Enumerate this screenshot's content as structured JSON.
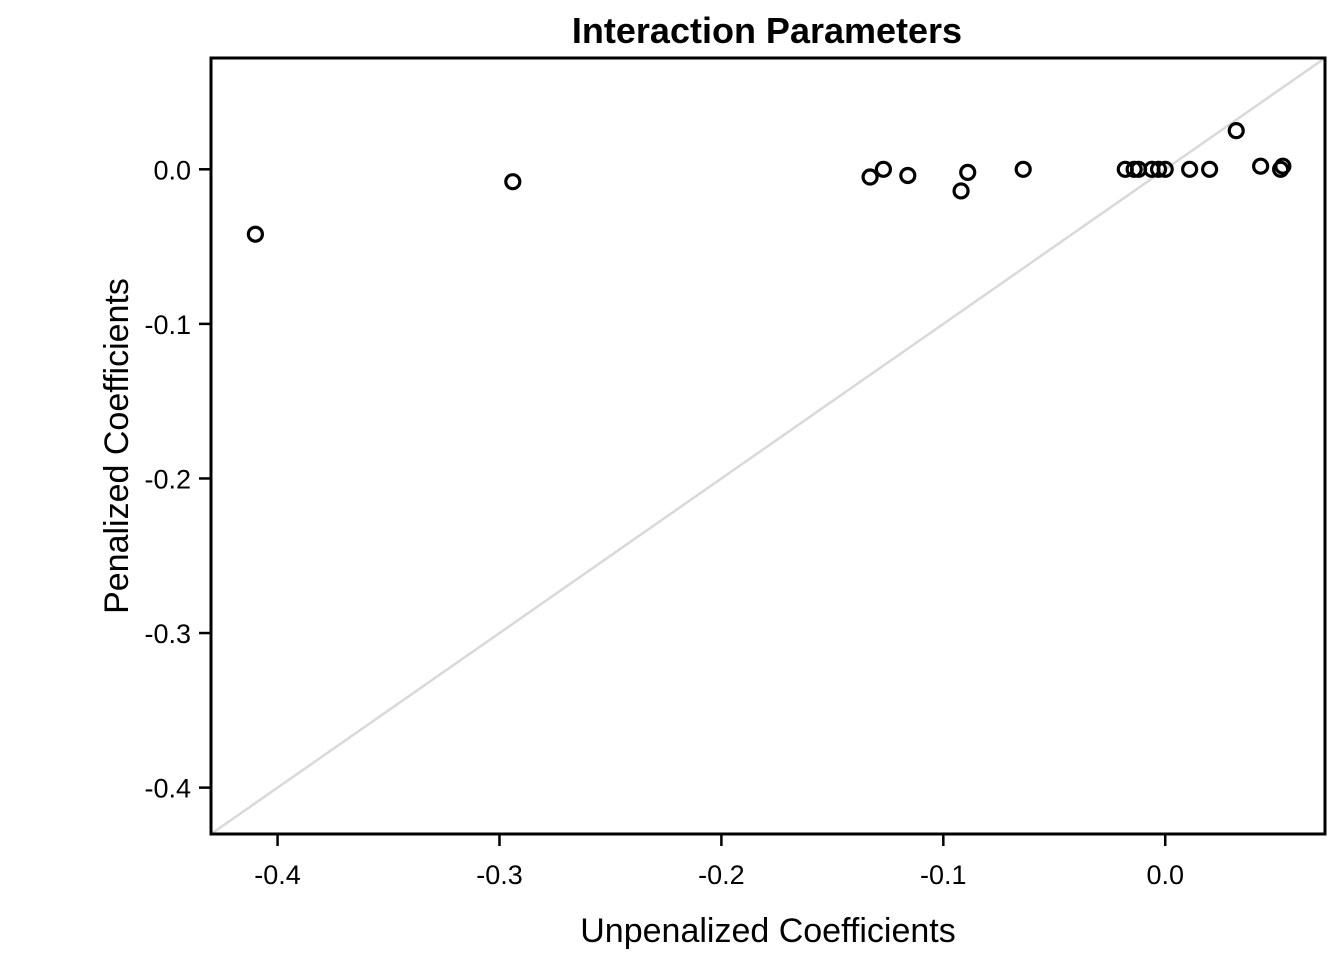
{
  "chart_data": {
    "type": "scatter",
    "title": "Interaction Parameters",
    "xlabel": "Unpenalized Coefficients",
    "ylabel": "Penalized Coefficients",
    "xlim": [
      -0.43,
      0.072
    ],
    "ylim": [
      -0.43,
      0.072
    ],
    "xticks": [
      -0.4,
      -0.3,
      -0.2,
      -0.1,
      0.0
    ],
    "xtick_labels": [
      "-0.4",
      "-0.3",
      "-0.2",
      "-0.1",
      "0.0"
    ],
    "yticks": [
      0.0,
      -0.1,
      -0.2,
      -0.3,
      -0.4
    ],
    "ytick_labels": [
      "0.0",
      "-0.1",
      "-0.2",
      "-0.3",
      "-0.4"
    ],
    "grid": false,
    "reference_line": "y = x",
    "reference_line_color": "#d9d9d9",
    "marker": "open-circle",
    "marker_color": "#000000",
    "points": [
      {
        "x": -0.41,
        "y": -0.042
      },
      {
        "x": -0.294,
        "y": -0.008
      },
      {
        "x": -0.133,
        "y": -0.005
      },
      {
        "x": -0.127,
        "y": 0.0
      },
      {
        "x": -0.116,
        "y": -0.004
      },
      {
        "x": -0.092,
        "y": -0.014
      },
      {
        "x": -0.089,
        "y": -0.002
      },
      {
        "x": -0.064,
        "y": 0.0
      },
      {
        "x": -0.018,
        "y": 0.0
      },
      {
        "x": -0.014,
        "y": 0.0
      },
      {
        "x": -0.012,
        "y": 0.0
      },
      {
        "x": -0.006,
        "y": 0.0
      },
      {
        "x": -0.003,
        "y": 0.0
      },
      {
        "x": 0.0,
        "y": 0.0
      },
      {
        "x": 0.011,
        "y": 0.0
      },
      {
        "x": 0.02,
        "y": 0.0
      },
      {
        "x": 0.032,
        "y": 0.025
      },
      {
        "x": 0.043,
        "y": 0.002
      },
      {
        "x": 0.052,
        "y": 0.0
      },
      {
        "x": 0.053,
        "y": 0.002
      }
    ]
  }
}
